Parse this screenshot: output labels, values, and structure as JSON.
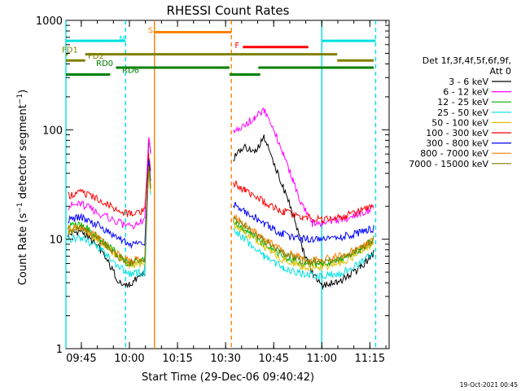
{
  "chart_data": {
    "type": "line",
    "title": "RHESSI Count Rates",
    "xlabel": "Start Time (29-Dec-06 09:40:42)",
    "ylabel_main": "Count Rate (s",
    "ylabel_sup1": "−1",
    "ylabel_mid": " detector segment",
    "ylabel_sup2": "−1",
    "ylabel_end": ")",
    "y_scale": "log",
    "ylim": [
      1,
      1000
    ],
    "xlim_minutes": [
      9.67,
      11.35
    ],
    "x_ticks": [
      {
        "label": "09:45",
        "t": 9.75
      },
      {
        "label": "10:00",
        "t": 10.0
      },
      {
        "label": "10:15",
        "t": 10.25
      },
      {
        "label": "10:30",
        "t": 10.5
      },
      {
        "label": "10:45",
        "t": 10.75
      },
      {
        "label": "11:00",
        "t": 11.0
      },
      {
        "label": "11:15",
        "t": 11.25
      }
    ],
    "y_ticks": [
      {
        "label": "1",
        "v": 1
      },
      {
        "label": "10",
        "v": 10
      },
      {
        "label": "100",
        "v": 100
      },
      {
        "label": "1000",
        "v": 1000
      }
    ],
    "legend": {
      "placement": "right",
      "header1": "Det 1f,3f,4f,5f,6f,9f,",
      "header2": "Att 0"
    },
    "series": [
      {
        "name": "3 - 6 keV",
        "color": "#000000",
        "points": [
          [
            9.68,
            11
          ],
          [
            9.75,
            12
          ],
          [
            9.85,
            8
          ],
          [
            9.95,
            4
          ],
          [
            10.0,
            3.8
          ],
          [
            10.08,
            5
          ],
          [
            10.1,
            80
          ],
          [
            10.11,
            60
          ],
          [
            10.52,
            null
          ],
          [
            10.54,
            55
          ],
          [
            10.6,
            70
          ],
          [
            10.65,
            60
          ],
          [
            10.7,
            85
          ],
          [
            10.75,
            50
          ],
          [
            10.8,
            30
          ],
          [
            10.85,
            17
          ],
          [
            10.9,
            8
          ],
          [
            10.95,
            5
          ],
          [
            11.0,
            3.8
          ],
          [
            11.1,
            4.2
          ],
          [
            11.2,
            5.5
          ],
          [
            11.27,
            7.5
          ]
        ]
      },
      {
        "name": "6 - 12 keV",
        "color": "#ff00ff",
        "points": [
          [
            9.68,
            20
          ],
          [
            9.75,
            21
          ],
          [
            9.85,
            17
          ],
          [
            9.95,
            14
          ],
          [
            10.0,
            13
          ],
          [
            10.08,
            15
          ],
          [
            10.1,
            85
          ],
          [
            10.11,
            60
          ],
          [
            10.52,
            null
          ],
          [
            10.54,
            95
          ],
          [
            10.6,
            110
          ],
          [
            10.65,
            130
          ],
          [
            10.7,
            150
          ],
          [
            10.75,
            100
          ],
          [
            10.8,
            60
          ],
          [
            10.85,
            35
          ],
          [
            10.9,
            20
          ],
          [
            10.95,
            14
          ],
          [
            11.0,
            14
          ],
          [
            11.1,
            15
          ],
          [
            11.2,
            17
          ],
          [
            11.27,
            19
          ]
        ]
      },
      {
        "name": "12 - 25 keV",
        "color": "#00b000",
        "points": [
          [
            9.68,
            13
          ],
          [
            9.75,
            14
          ],
          [
            9.85,
            10
          ],
          [
            9.95,
            7
          ],
          [
            10.0,
            6
          ],
          [
            10.08,
            6.5
          ],
          [
            10.1,
            50
          ],
          [
            10.11,
            30
          ],
          [
            10.52,
            null
          ],
          [
            10.54,
            15
          ],
          [
            10.6,
            12
          ],
          [
            10.7,
            9
          ],
          [
            10.8,
            7
          ],
          [
            10.9,
            6
          ],
          [
            11.0,
            6
          ],
          [
            11.1,
            6.5
          ],
          [
            11.2,
            8
          ],
          [
            11.27,
            10
          ]
        ]
      },
      {
        "name": "25 - 50 keV",
        "color": "#00e0e0",
        "points": [
          [
            9.68,
            10
          ],
          [
            9.75,
            10.5
          ],
          [
            9.85,
            8
          ],
          [
            9.95,
            5.5
          ],
          [
            10.0,
            4.8
          ],
          [
            10.08,
            5
          ],
          [
            10.1,
            40
          ],
          [
            10.11,
            25
          ],
          [
            10.52,
            null
          ],
          [
            10.54,
            12
          ],
          [
            10.6,
            10
          ],
          [
            10.7,
            7
          ],
          [
            10.8,
            5.5
          ],
          [
            10.9,
            4.8
          ],
          [
            11.0,
            4.6
          ],
          [
            11.1,
            4.9
          ],
          [
            11.2,
            6
          ],
          [
            11.27,
            7.5
          ]
        ]
      },
      {
        "name": "50 - 100 keV",
        "color": "#e0c000",
        "points": [
          [
            9.68,
            12
          ],
          [
            9.75,
            12.5
          ],
          [
            9.85,
            9.5
          ],
          [
            9.95,
            6.5
          ],
          [
            10.0,
            5.8
          ],
          [
            10.08,
            6
          ],
          [
            10.1,
            45
          ],
          [
            10.11,
            28
          ],
          [
            10.52,
            null
          ],
          [
            10.54,
            14
          ],
          [
            10.6,
            11.5
          ],
          [
            10.7,
            8.5
          ],
          [
            10.8,
            6.5
          ],
          [
            10.9,
            5.6
          ],
          [
            11.0,
            5.5
          ],
          [
            11.1,
            6
          ],
          [
            11.2,
            7.5
          ],
          [
            11.27,
            9
          ]
        ]
      },
      {
        "name": "100 - 300 keV",
        "color": "#ff0000",
        "points": [
          [
            9.68,
            25
          ],
          [
            9.75,
            27
          ],
          [
            9.85,
            23
          ],
          [
            9.95,
            18
          ],
          [
            10.0,
            17
          ],
          [
            10.08,
            18
          ],
          [
            10.1,
            60
          ],
          [
            10.11,
            45
          ],
          [
            10.52,
            null
          ],
          [
            10.54,
            33
          ],
          [
            10.6,
            28
          ],
          [
            10.7,
            22
          ],
          [
            10.8,
            18
          ],
          [
            10.9,
            16
          ],
          [
            11.0,
            15
          ],
          [
            11.1,
            16
          ],
          [
            11.2,
            18
          ],
          [
            11.27,
            20
          ]
        ]
      },
      {
        "name": "300 - 800 keV",
        "color": "#0000ff",
        "points": [
          [
            9.68,
            15
          ],
          [
            9.75,
            16
          ],
          [
            9.85,
            13
          ],
          [
            9.95,
            10
          ],
          [
            10.0,
            9
          ],
          [
            10.08,
            9.5
          ],
          [
            10.1,
            55
          ],
          [
            10.11,
            35
          ],
          [
            10.52,
            null
          ],
          [
            10.54,
            21
          ],
          [
            10.6,
            18
          ],
          [
            10.7,
            14
          ],
          [
            10.8,
            11
          ],
          [
            10.9,
            10
          ],
          [
            11.0,
            10
          ],
          [
            11.1,
            10.5
          ],
          [
            11.2,
            11.5
          ],
          [
            11.27,
            12.5
          ]
        ]
      },
      {
        "name": "800 - 7000 keV",
        "color": "#ff8000",
        "points": [
          [
            9.68,
            12.5
          ],
          [
            9.75,
            13
          ],
          [
            9.85,
            10
          ],
          [
            9.95,
            7
          ],
          [
            10.0,
            6.3
          ],
          [
            10.08,
            6.6
          ],
          [
            10.1,
            48
          ],
          [
            10.11,
            30
          ],
          [
            10.52,
            null
          ],
          [
            10.54,
            16
          ],
          [
            10.6,
            13.5
          ],
          [
            10.7,
            10
          ],
          [
            10.8,
            7.7
          ],
          [
            10.9,
            6.7
          ],
          [
            11.0,
            6.5
          ],
          [
            11.1,
            7
          ],
          [
            11.2,
            8.5
          ],
          [
            11.27,
            10
          ]
        ]
      },
      {
        "name": "7000 - 15000 keV",
        "color": "#808000",
        "points": [
          [
            9.68,
            12
          ],
          [
            9.75,
            12.5
          ],
          [
            9.85,
            9.7
          ],
          [
            9.95,
            6.8
          ],
          [
            10.0,
            6.1
          ],
          [
            10.08,
            6.4
          ],
          [
            10.1,
            46
          ],
          [
            10.11,
            29
          ],
          [
            10.52,
            null
          ],
          [
            10.54,
            15.5
          ],
          [
            10.6,
            13
          ],
          [
            10.7,
            9.7
          ],
          [
            10.8,
            7.4
          ],
          [
            10.9,
            6.4
          ],
          [
            11.0,
            6.2
          ],
          [
            11.1,
            6.7
          ],
          [
            11.2,
            8.2
          ],
          [
            11.27,
            9.7
          ]
        ]
      }
    ],
    "state_bars": [
      {
        "label": "N",
        "color": "#00e0e0",
        "value": 650,
        "segments": [
          [
            9.67,
            9.98
          ],
          [
            11.0,
            11.28
          ]
        ]
      },
      {
        "label": "S",
        "color": "#ff8000",
        "value": 780,
        "segments": [
          [
            10.13,
            10.53
          ]
        ]
      },
      {
        "label": "F",
        "color": "#ff0000",
        "value": 570,
        "segments": [
          [
            10.59,
            10.93
          ]
        ]
      },
      {
        "label": "FD1",
        "color": "#808000",
        "value": 490,
        "segments": [
          [
            9.67,
            9.68
          ],
          [
            9.77,
            11.08
          ]
        ]
      },
      {
        "label": "FD2",
        "color": "#808000",
        "value": 430,
        "segments": [
          [
            9.67,
            9.77
          ],
          [
            11.08,
            11.27
          ]
        ]
      },
      {
        "label": "RD0",
        "color": "#008000",
        "value": 370,
        "segments": [
          [
            9.93,
            10.52
          ],
          [
            10.67,
            11.27
          ]
        ]
      },
      {
        "label": "RD6",
        "color": "#008000",
        "value": 320,
        "segments": [
          [
            9.67,
            9.9
          ],
          [
            10.52,
            10.68
          ]
        ]
      }
    ],
    "vertical_markers": [
      {
        "t": 9.67,
        "color": "#00e0e0",
        "style": "solid"
      },
      {
        "t": 9.98,
        "color": "#00e0e0",
        "style": "dashed"
      },
      {
        "t": 10.13,
        "color": "#ff8000",
        "style": "solid"
      },
      {
        "t": 10.53,
        "color": "#ff8000",
        "style": "dashed"
      },
      {
        "t": 11.0,
        "color": "#00e0e0",
        "style": "solid"
      },
      {
        "t": 11.28,
        "color": "#00e0e0",
        "style": "dashed"
      }
    ]
  },
  "footer": {
    "timestamp": "19-Oct-2021 00:45"
  }
}
